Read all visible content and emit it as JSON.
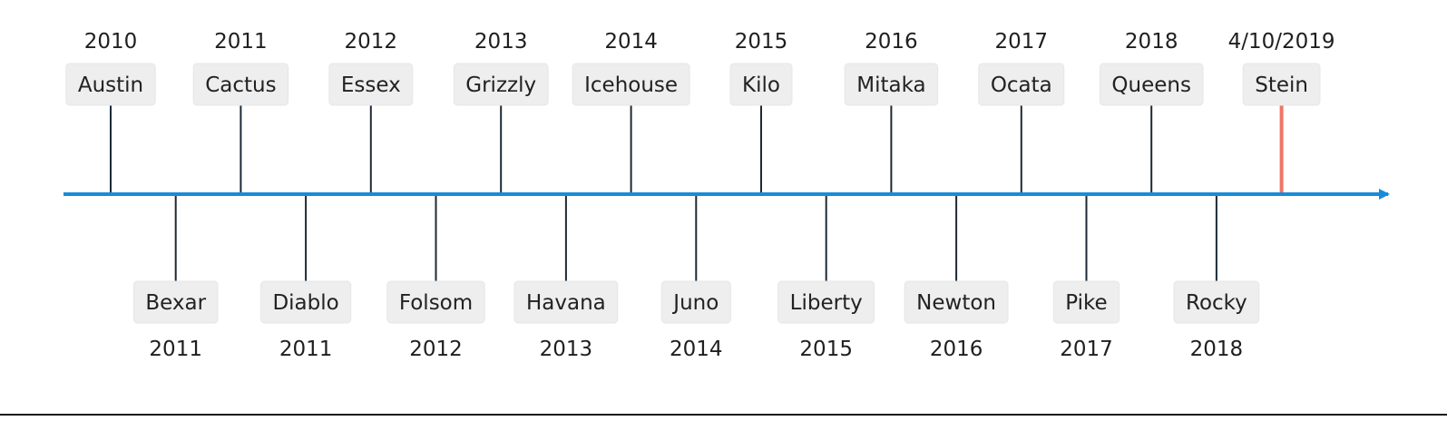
{
  "colors": {
    "axis": "#1a8bd8",
    "stem": "#1c2a36",
    "highlight": "#f07565",
    "box": "#eeeeee",
    "text": "#222222"
  },
  "releases": [
    {
      "name": "Austin",
      "year": "2010",
      "side": "above"
    },
    {
      "name": "Bexar",
      "year": "2011",
      "side": "below"
    },
    {
      "name": "Cactus",
      "year": "2011",
      "side": "above"
    },
    {
      "name": "Diablo",
      "year": "2011",
      "side": "below"
    },
    {
      "name": "Essex",
      "year": "2012",
      "side": "above"
    },
    {
      "name": "Folsom",
      "year": "2012",
      "side": "below"
    },
    {
      "name": "Grizzly",
      "year": "2013",
      "side": "above"
    },
    {
      "name": "Havana",
      "year": "2013",
      "side": "below"
    },
    {
      "name": "Icehouse",
      "year": "2014",
      "side": "above"
    },
    {
      "name": "Juno",
      "year": "2014",
      "side": "below"
    },
    {
      "name": "Kilo",
      "year": "2015",
      "side": "above"
    },
    {
      "name": "Liberty",
      "year": "2015",
      "side": "below"
    },
    {
      "name": "Mitaka",
      "year": "2016",
      "side": "above"
    },
    {
      "name": "Newton",
      "year": "2016",
      "side": "below"
    },
    {
      "name": "Ocata",
      "year": "2017",
      "side": "above"
    },
    {
      "name": "Pike",
      "year": "2017",
      "side": "below"
    },
    {
      "name": "Queens",
      "year": "2018",
      "side": "above"
    },
    {
      "name": "Rocky",
      "year": "2018",
      "side": "below"
    },
    {
      "name": "Stein",
      "year": "4/10/2019",
      "side": "above",
      "highlight": true
    }
  ]
}
